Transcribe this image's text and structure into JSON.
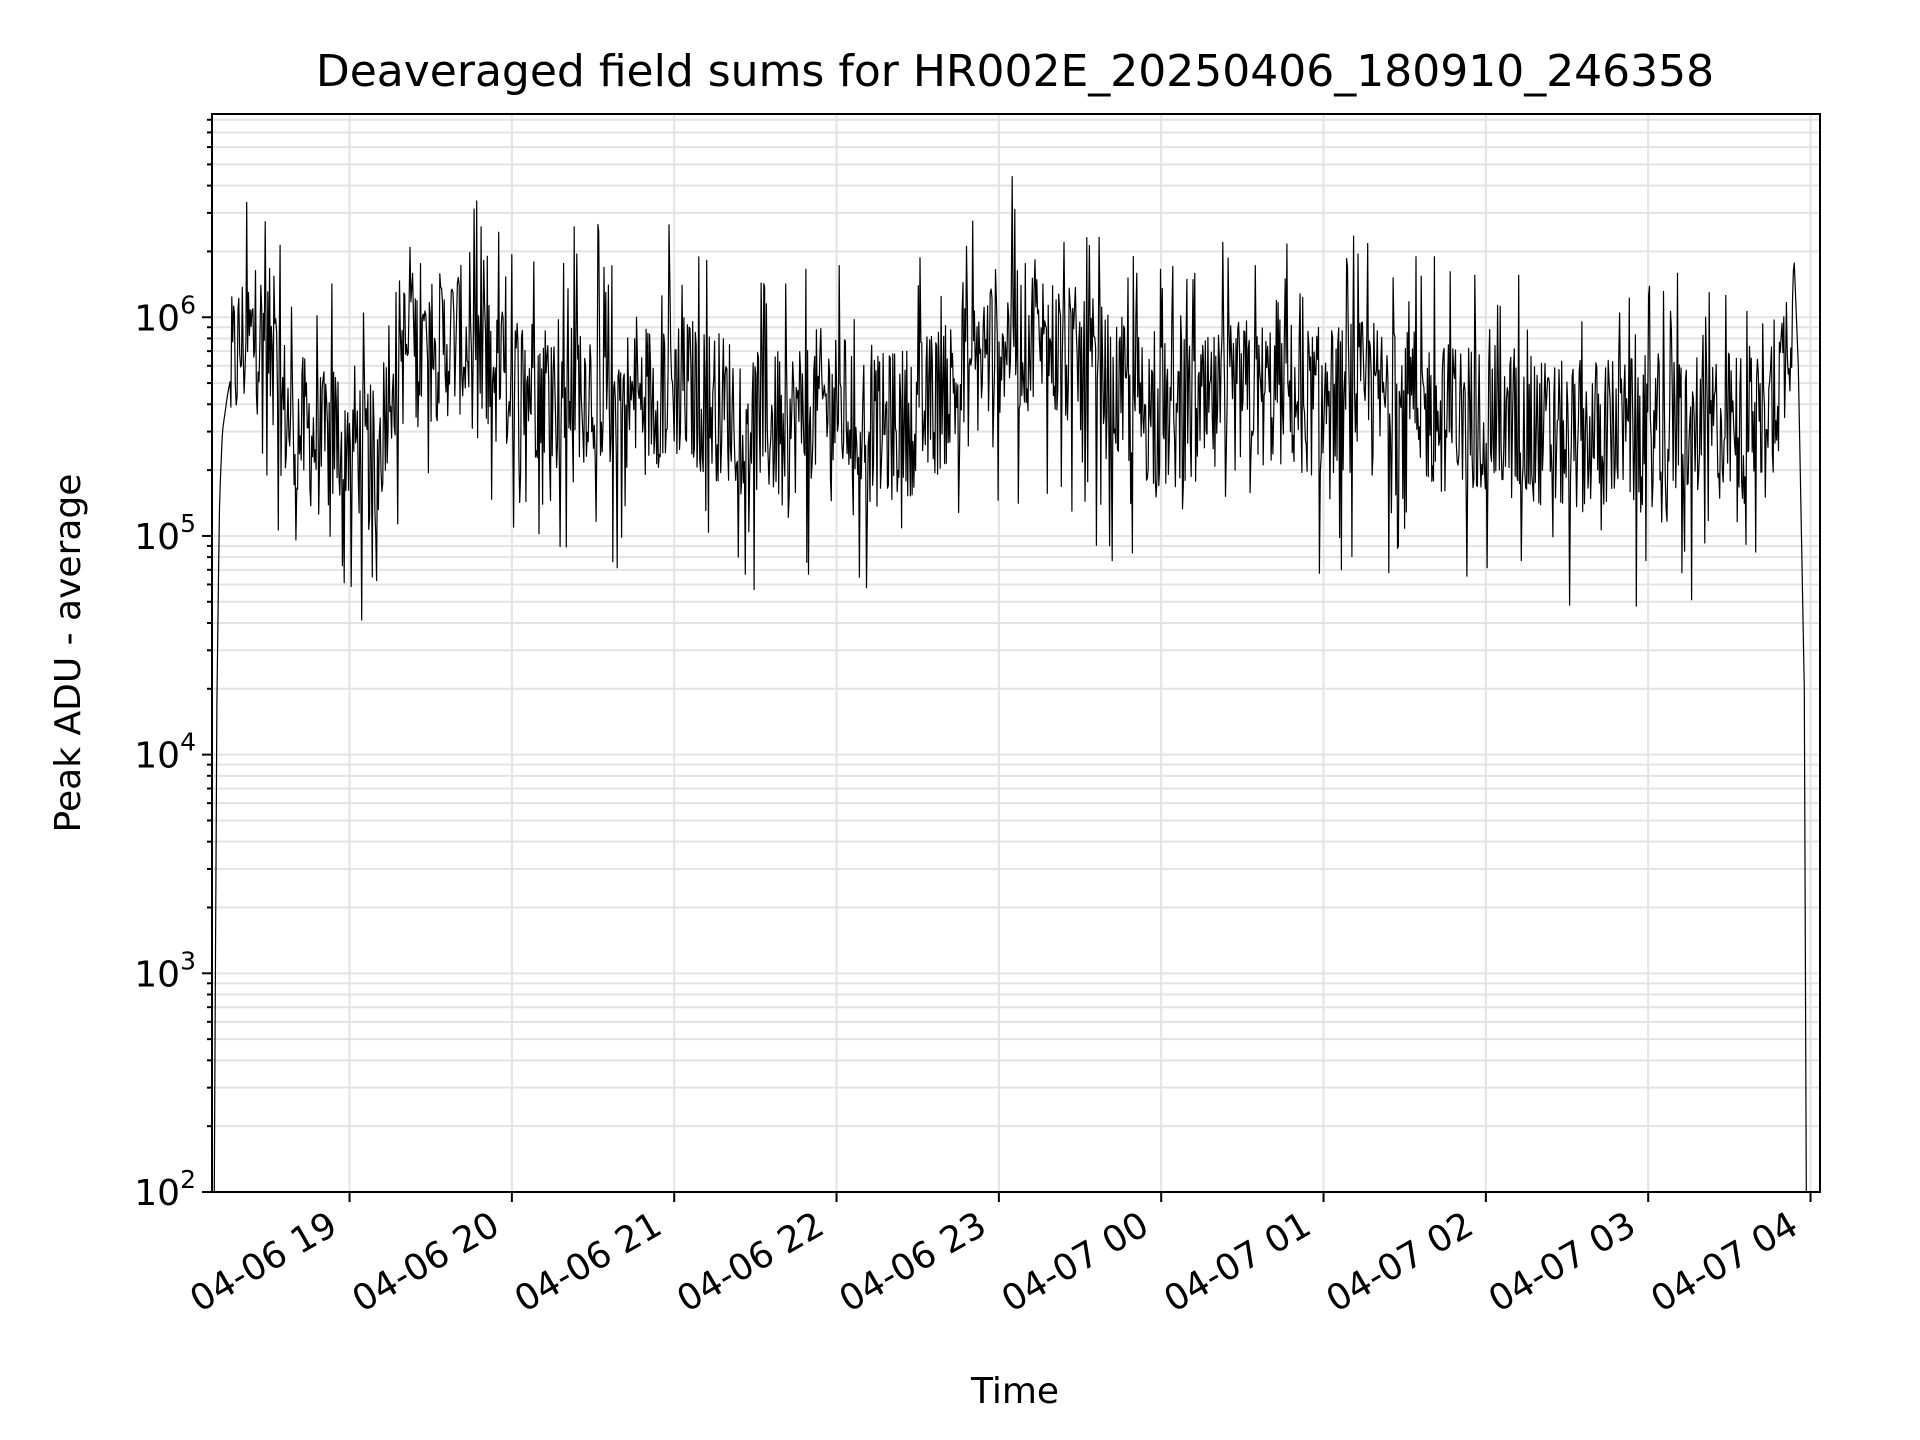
{
  "chart_data": {
    "type": "line",
    "title": "Deaveraged field sums for HR002E_20250406_180910_246358",
    "xlabel": "Time",
    "ylabel": "Peak ADU - average",
    "yscale": "log",
    "ylim": [
      100,
      8500000
    ],
    "y_tick_values": [
      100,
      1000,
      10000,
      100000,
      1000000
    ],
    "y_tick_labels": [
      {
        "base": "10",
        "exp": "2"
      },
      {
        "base": "10",
        "exp": "3"
      },
      {
        "base": "10",
        "exp": "4"
      },
      {
        "base": "10",
        "exp": "5"
      },
      {
        "base": "10",
        "exp": "6"
      }
    ],
    "xlim": [
      "2025-04-06T18:09:10",
      "2025-04-07T04:03:30"
    ],
    "x_ticks": [
      {
        "t": "2025-04-06T19:00:00",
        "label": "04-06 19"
      },
      {
        "t": "2025-04-06T20:00:00",
        "label": "04-06 20"
      },
      {
        "t": "2025-04-06T21:00:00",
        "label": "04-06 21"
      },
      {
        "t": "2025-04-06T22:00:00",
        "label": "04-06 22"
      },
      {
        "t": "2025-04-06T23:00:00",
        "label": "04-06 23"
      },
      {
        "t": "2025-04-07T00:00:00",
        "label": "04-07 00"
      },
      {
        "t": "2025-04-07T01:00:00",
        "label": "04-07 01"
      },
      {
        "t": "2025-04-07T02:00:00",
        "label": "04-07 02"
      },
      {
        "t": "2025-04-07T03:00:00",
        "label": "04-07 03"
      },
      {
        "t": "2025-04-07T04:00:00",
        "label": "04-07 04"
      }
    ],
    "grid": true,
    "line_color": "#000000",
    "series": [
      {
        "x": [
          "2025-04-06T18:10:00",
          "2025-04-06T18:11:00",
          "2025-04-06T18:12:00",
          "2025-04-06T18:13:00",
          "2025-04-06T18:15:00",
          "2025-04-06T18:17:00",
          "2025-04-06T18:20:00",
          "2025-04-06T18:25:00",
          "2025-04-06T18:30:00",
          "2025-04-06T18:35:00",
          "2025-04-06T18:40:00",
          "2025-04-06T18:45:00",
          "2025-04-06T18:50:00",
          "2025-04-06T18:55:00",
          "2025-04-06T19:00:00",
          "2025-04-06T19:05:00",
          "2025-04-06T19:10:00",
          "2025-04-06T19:15:00",
          "2025-04-06T19:20:00",
          "2025-04-06T19:30:00",
          "2025-04-06T19:40:00",
          "2025-04-06T19:50:00",
          "2025-04-06T20:00:00",
          "2025-04-06T20:15:00",
          "2025-04-06T20:30:00",
          "2025-04-06T20:45:00",
          "2025-04-06T21:00:00",
          "2025-04-06T21:15:00",
          "2025-04-06T21:30:00",
          "2025-04-06T21:40:00",
          "2025-04-06T21:50:00",
          "2025-04-06T22:00:00",
          "2025-04-06T22:15:00",
          "2025-04-06T22:30:00",
          "2025-04-06T22:45:00",
          "2025-04-06T23:00:00",
          "2025-04-06T23:15:00",
          "2025-04-06T23:30:00",
          "2025-04-06T23:45:00",
          "2025-04-07T00:00:00",
          "2025-04-07T00:15:00",
          "2025-04-07T00:30:00",
          "2025-04-07T00:45:00",
          "2025-04-07T01:00:00",
          "2025-04-07T01:15:00",
          "2025-04-07T01:30:00",
          "2025-04-07T01:45:00",
          "2025-04-07T02:00:00",
          "2025-04-07T02:15:00",
          "2025-04-07T02:30:00",
          "2025-04-07T02:45:00",
          "2025-04-07T03:00:00",
          "2025-04-07T03:15:00",
          "2025-04-07T03:30:00",
          "2025-04-07T03:40:00",
          "2025-04-07T03:45:00",
          "2025-04-07T03:48:00",
          "2025-04-07T03:50:00",
          "2025-04-07T03:52:00",
          "2025-04-07T03:53:00",
          "2025-04-07T03:54:00"
        ],
        "y": [
          100,
          20000,
          150000,
          300000,
          450000,
          600000,
          750000,
          800000,
          800000,
          400000,
          300000,
          300000,
          250000,
          300000,
          300000,
          250000,
          200000,
          600000,
          700000,
          700000,
          800000,
          600000,
          500000,
          500000,
          500000,
          400000,
          500000,
          400000,
          350000,
          300000,
          400000,
          400000,
          300000,
          350000,
          500000,
          800000,
          800000,
          600000,
          450000,
          350000,
          350000,
          450000,
          450000,
          400000,
          450000,
          400000,
          350000,
          350000,
          300000,
          280000,
          300000,
          300000,
          320000,
          320000,
          300000,
          400000,
          500000,
          600000,
          900000,
          1200000,
          1200000
        ]
      }
    ]
  }
}
